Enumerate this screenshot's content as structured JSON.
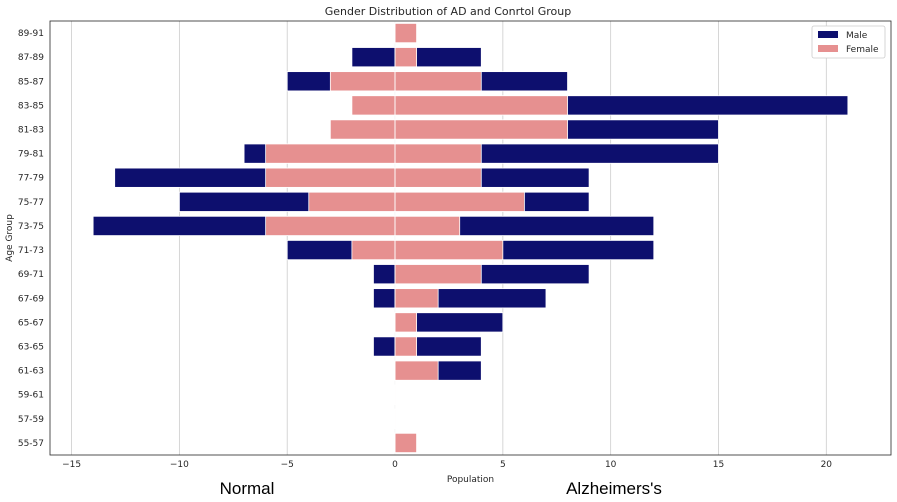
{
  "chart_data": {
    "type": "bar",
    "orientation": "horizontal",
    "title": "Gender Distribution of AD and Conrtol Group",
    "xlabel": "Population",
    "ylabel": "Age Group",
    "xlim": [
      -16,
      23
    ],
    "xticks": [
      -15,
      -10,
      -5,
      0,
      5,
      10,
      15,
      20
    ],
    "xtick_labels": [
      "−15",
      "−10",
      "−5",
      "0",
      "5",
      "10",
      "15",
      "20"
    ],
    "grid": "vertical",
    "legend_position": "top-right",
    "annotations": {
      "left": "Normal",
      "right": "Alzheimers's"
    },
    "categories": [
      "89-91",
      "87-89",
      "85-87",
      "83-85",
      "81-83",
      "79-81",
      "77-79",
      "75-77",
      "73-75",
      "71-73",
      "69-71",
      "67-69",
      "65-67",
      "63-65",
      "61-63",
      "59-61",
      "57-59",
      "55-57"
    ],
    "series": [
      {
        "name": "Male",
        "color": "#0d0f6e",
        "normal": [
          0,
          -2,
          -5,
          0,
          0,
          -7,
          -13,
          -10,
          -14,
          -5,
          -1,
          -1,
          0,
          -1,
          0,
          0,
          0,
          0
        ],
        "ad": [
          0,
          4,
          8,
          21,
          15,
          15,
          9,
          9,
          12,
          12,
          9,
          7,
          5,
          4,
          4,
          0,
          0,
          0
        ]
      },
      {
        "name": "Female",
        "color": "#e69090",
        "normal": [
          0,
          0,
          -3,
          -2,
          -3,
          -6,
          -6,
          -4,
          -6,
          -2,
          0,
          0,
          0,
          0,
          0,
          0,
          0,
          0
        ],
        "ad": [
          1,
          1,
          4,
          8,
          8,
          4,
          4,
          6,
          3,
          5,
          4,
          2,
          1,
          1,
          2,
          0,
          0,
          1
        ]
      }
    ]
  }
}
